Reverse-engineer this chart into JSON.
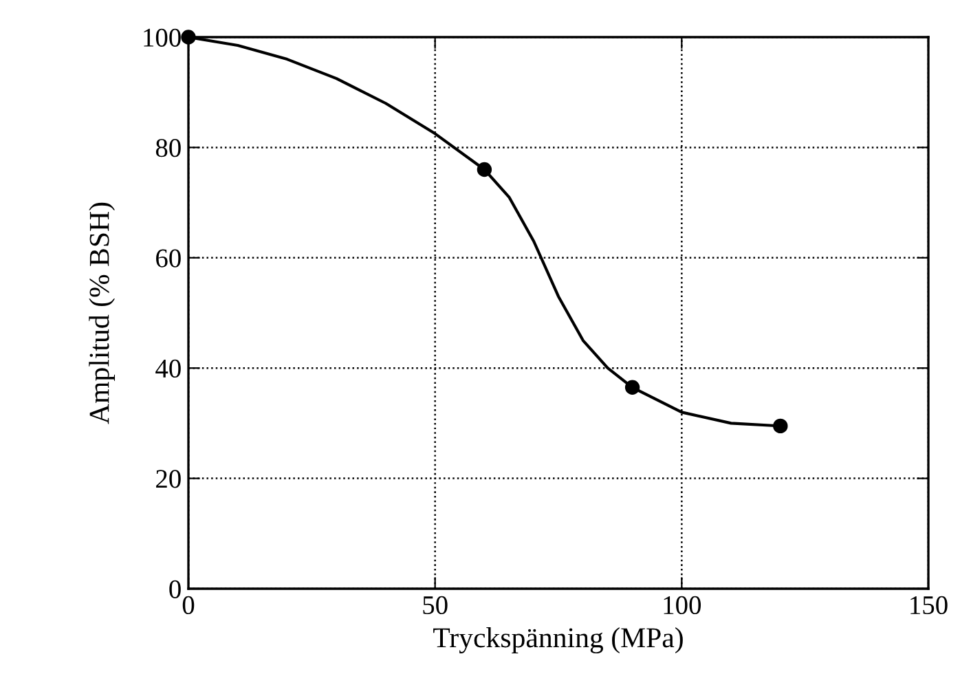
{
  "chart_data": {
    "type": "scatter",
    "xlabel": "Tryckspänning (MPa)",
    "ylabel": "Amplitud (% BSH)",
    "xlim": [
      0,
      150
    ],
    "ylim": [
      0,
      100
    ],
    "xticks": [
      0,
      50,
      100,
      150
    ],
    "yticks": [
      0,
      20,
      40,
      60,
      80,
      100
    ],
    "grid": true,
    "series": [
      {
        "marker": "circle",
        "color": "#000000",
        "x": [
          0,
          60,
          90,
          120
        ],
        "values": [
          100,
          76,
          36.5,
          29.5
        ]
      },
      {
        "type": "line",
        "color": "#000000",
        "line_style": "solid",
        "marker": "none",
        "x": [
          0,
          10,
          20,
          30,
          40,
          50,
          60,
          65,
          70,
          75,
          80,
          85,
          90,
          100,
          110,
          120
        ],
        "values": [
          100,
          98.5,
          96,
          92.5,
          88,
          82.5,
          76,
          71,
          63,
          53,
          45,
          40,
          36.5,
          32,
          30,
          29.5
        ]
      }
    ]
  }
}
